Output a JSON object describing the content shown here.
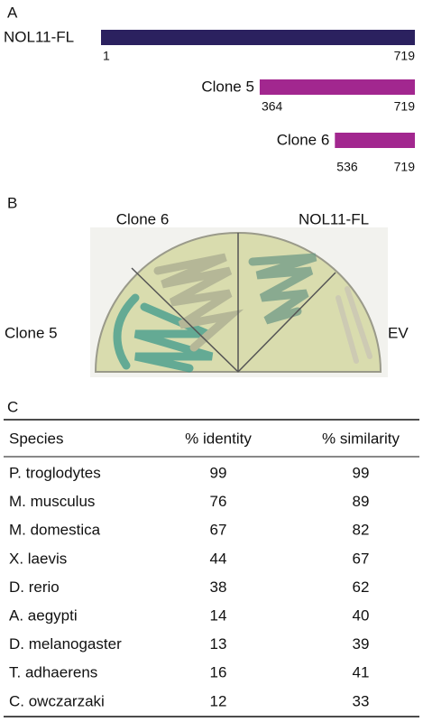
{
  "panel_a": {
    "label": "A",
    "constructs": [
      {
        "name": "NOL11-FL",
        "start": 1,
        "end": 719,
        "color": "#2b215f"
      },
      {
        "name": "Clone 5",
        "start": 364,
        "end": 719,
        "color": "#a2278f"
      },
      {
        "name": "Clone 6",
        "start": 536,
        "end": 719,
        "color": "#a2278f"
      }
    ]
  },
  "panel_b": {
    "label": "B",
    "sectors": [
      "Clone 6",
      "NOL11-FL",
      "Clone 5",
      "EV"
    ]
  },
  "panel_c": {
    "label": "C",
    "table": {
      "header": [
        "Species",
        "% identity",
        "% similarity"
      ],
      "rows": [
        [
          "P. troglodytes",
          99,
          99
        ],
        [
          "M. musculus",
          76,
          89
        ],
        [
          "M. domestica",
          67,
          82
        ],
        [
          "X. laevis",
          44,
          67
        ],
        [
          "D. rerio",
          38,
          62
        ],
        [
          "A. aegypti",
          14,
          40
        ],
        [
          "D. melanogaster",
          13,
          39
        ],
        [
          "T. adhaerens",
          16,
          41
        ],
        [
          "C. owczarzaki",
          12,
          33
        ]
      ]
    }
  }
}
